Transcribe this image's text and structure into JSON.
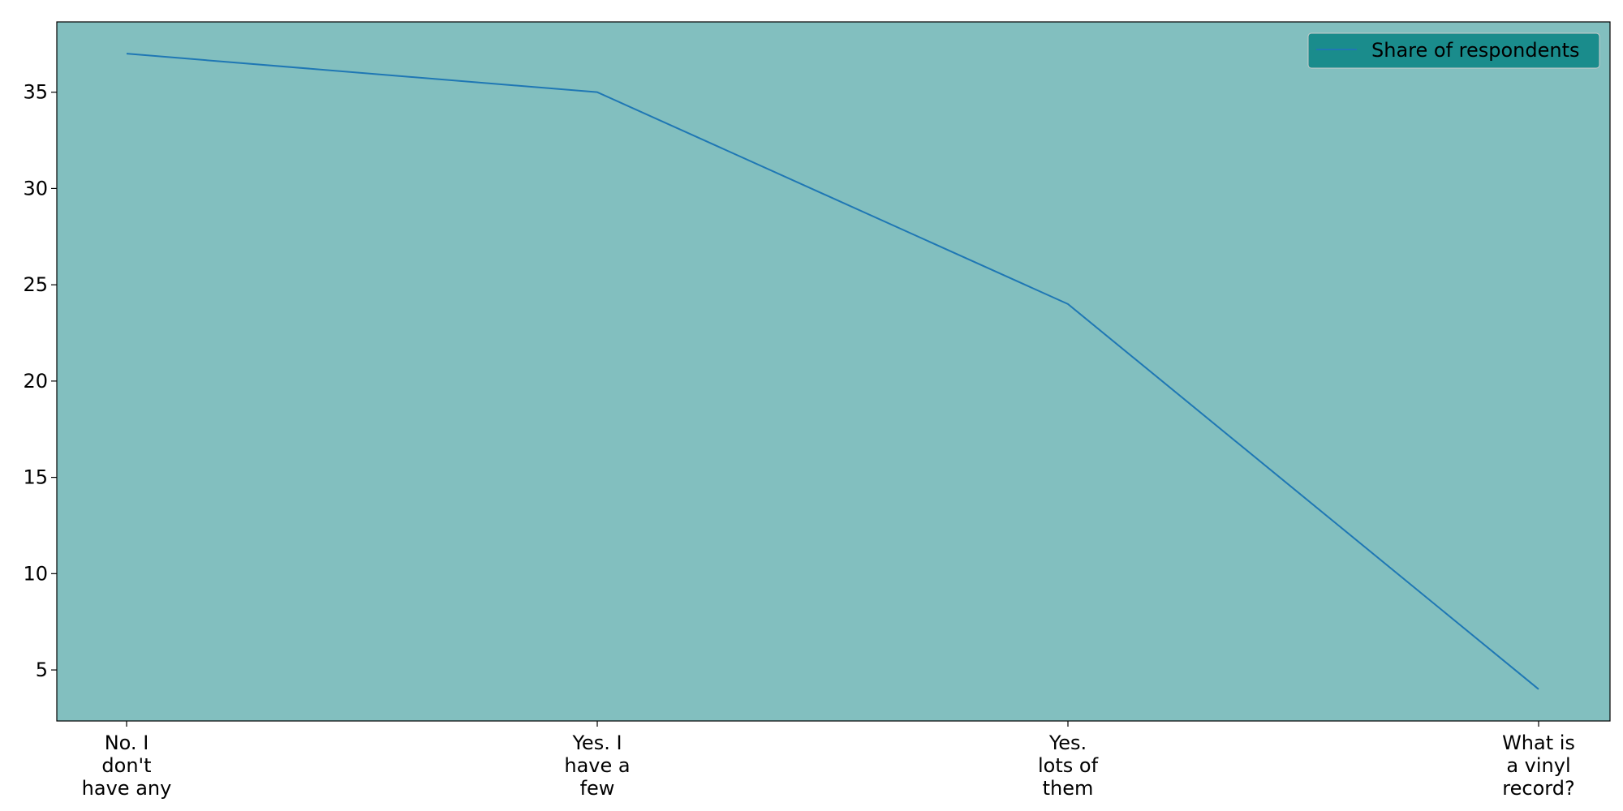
{
  "chart_data": {
    "type": "line",
    "title": "",
    "xlabel": "",
    "ylabel": "",
    "categories": [
      [
        "No. I",
        "don't",
        "have any"
      ],
      [
        "Yes. I",
        "have a",
        "few"
      ],
      [
        "Yes.",
        "lots of",
        "them"
      ],
      [
        "What is",
        "a vinyl",
        "record?"
      ]
    ],
    "series": [
      {
        "name": "Share of respondents",
        "values": [
          37,
          35,
          24,
          4
        ],
        "color": "#1f77b4"
      }
    ],
    "ylim": [
      2.35,
      38.65
    ],
    "yticks": [
      5,
      10,
      15,
      20,
      25,
      30,
      35
    ],
    "grid": false,
    "legend_position": "top-right",
    "plot_background": "#82bfbf",
    "legend_background": "#1a8c8c"
  }
}
